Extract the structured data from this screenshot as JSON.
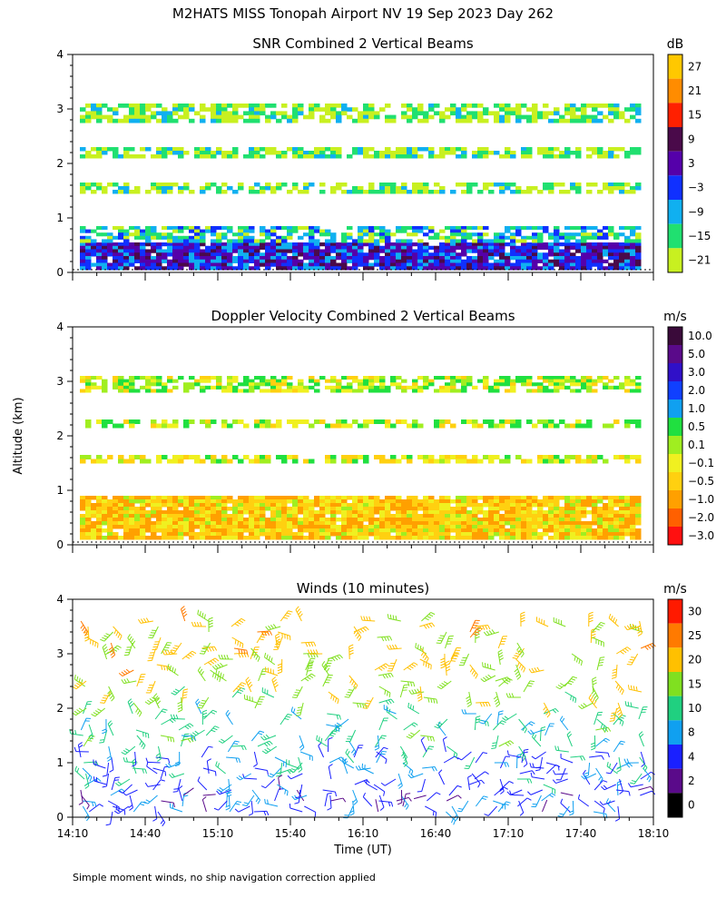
{
  "figure": {
    "title": "M2HATS MISS Tonopah Airport NV  19 Sep 2023 Day 262",
    "ylabel": "Altitude (km)",
    "xlabel": "Time (UT)",
    "footnote": "Simple moment winds, no ship navigation correction applied"
  },
  "chart_data": [
    {
      "type": "heatmap",
      "title": "SNR Combined 2 Vertical Beams",
      "ylabel": "Altitude (km)",
      "ylim": [
        0,
        4
      ],
      "yticks": [
        "0",
        "1",
        "2",
        "3",
        "4"
      ],
      "xlim_minutes": [
        0,
        240
      ],
      "colorbar": {
        "unit": "dB",
        "labels": [
          "27",
          "21",
          "15",
          "9",
          "3",
          "−3",
          "−9",
          "−15",
          "−21"
        ],
        "colors": [
          "#ffc800",
          "#ff8c00",
          "#ff2000",
          "#4a0a4a",
          "#5500aa",
          "#1030ff",
          "#10b0f0",
          "#20e070",
          "#c8f020"
        ]
      },
      "layers": [
        {
          "name": "boundary layer strong",
          "alt_km": [
            0.05,
            0.55
          ],
          "snr_db": 0
        },
        {
          "name": "boundary layer top",
          "alt_km": [
            0.55,
            0.85
          ],
          "snr_db": -12
        },
        {
          "name": "layer 1.5 km",
          "alt_km": [
            1.45,
            1.65
          ],
          "snr_db": -18
        },
        {
          "name": "layer 2.2 km",
          "alt_km": [
            2.1,
            2.3
          ],
          "snr_db": -18
        },
        {
          "name": "layer 2.9 km",
          "alt_km": [
            2.75,
            3.1
          ],
          "snr_db": -19
        }
      ]
    },
    {
      "type": "heatmap",
      "title": "Doppler Velocity Combined 2 Vertical Beams",
      "ylabel": "Altitude (km)",
      "ylim": [
        0,
        4
      ],
      "yticks": [
        "0",
        "1",
        "2",
        "3",
        "4"
      ],
      "xlim_minutes": [
        0,
        240
      ],
      "colorbar": {
        "unit": "m/s",
        "labels": [
          "10.0",
          "5.0",
          "3.0",
          "2.0",
          "1.0",
          "0.5",
          "0.1",
          "−0.1",
          "−0.5",
          "−1.0",
          "−2.0",
          "−3.0"
        ],
        "colors": [
          "#3a0a3a",
          "#5a0a8a",
          "#3010c8",
          "#1040ff",
          "#10a0f0",
          "#20e040",
          "#a0ee20",
          "#f0f020",
          "#ffd010",
          "#ffa000",
          "#ff6000",
          "#ff1010"
        ]
      },
      "layers": [
        {
          "name": "boundary layer",
          "alt_km": [
            0.1,
            0.9
          ],
          "velocity_ms": -0.5
        },
        {
          "name": "layer 1.5 km",
          "alt_km": [
            1.5,
            1.65
          ],
          "velocity_ms": -0.1
        },
        {
          "name": "layer 2.2 km",
          "alt_km": [
            2.15,
            2.3
          ],
          "velocity_ms": 0.1
        },
        {
          "name": "layer 2.9 km",
          "alt_km": [
            2.8,
            3.1
          ],
          "velocity_ms": 0.1
        }
      ]
    },
    {
      "type": "scatter",
      "title": "Winds (10 minutes)",
      "ylabel": "Altitude (km)",
      "ylim": [
        0,
        4
      ],
      "yticks": [
        "0",
        "1",
        "2",
        "3",
        "4"
      ],
      "x_ticklabels": [
        "14:10",
        "14:40",
        "15:10",
        "15:40",
        "16:10",
        "16:40",
        "17:10",
        "17:40",
        "18:10"
      ],
      "xlim_minutes": [
        0,
        240
      ],
      "colorbar": {
        "unit": "m/s",
        "labels": [
          "30",
          "25",
          "20",
          "15",
          "10",
          "8",
          "4",
          "2",
          "0"
        ],
        "colors": [
          "#ff1a00",
          "#ff7a00",
          "#ffc000",
          "#80e020",
          "#20d080",
          "#10a0f0",
          "#1a20ff",
          "#5a0a8a",
          "#000000"
        ]
      },
      "profile_times_minutes": [
        5,
        15,
        25,
        35,
        45,
        55,
        65,
        75,
        85,
        95,
        105,
        115,
        125,
        135,
        145,
        155,
        165,
        175,
        185,
        195,
        205,
        215,
        225,
        235
      ],
      "speed_levels": [
        {
          "alt_km": [
            0.0,
            0.6
          ],
          "speed_ms": 6
        },
        {
          "alt_km": [
            0.6,
            1.3
          ],
          "speed_ms": 8
        },
        {
          "alt_km": [
            1.3,
            2.0
          ],
          "speed_ms": 12
        },
        {
          "alt_km": [
            2.0,
            2.6
          ],
          "speed_ms": 18
        },
        {
          "alt_km": [
            2.6,
            3.7
          ],
          "speed_ms": 22
        }
      ]
    }
  ]
}
